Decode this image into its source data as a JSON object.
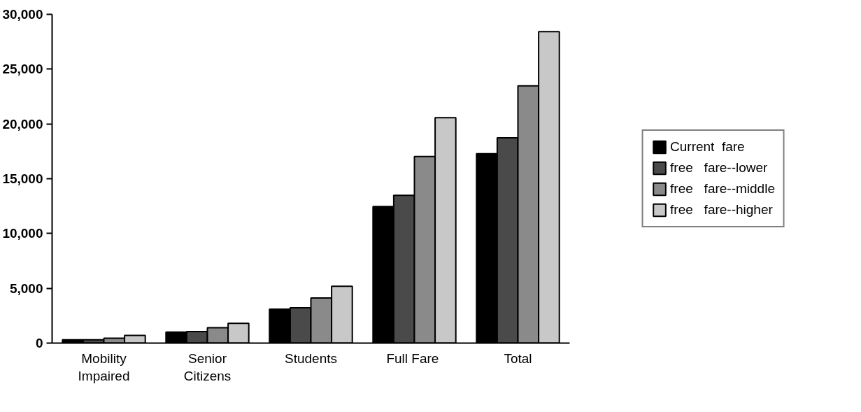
{
  "chart_data": {
    "type": "bar",
    "categories": [
      "Mobility\nImpaired",
      "Senior\nCitizens",
      "Students",
      "Full  Fare",
      "Total"
    ],
    "series": [
      {
        "name": "Current  fare",
        "color": "#000000",
        "values": [
          300,
          1000,
          3100,
          12470,
          17280
        ]
      },
      {
        "name": "free   fare--lower",
        "color": "#4a4a4a",
        "values": [
          300,
          1050,
          3230,
          13480,
          18730
        ]
      },
      {
        "name": "free   fare--middle",
        "color": "#8a8a8a",
        "values": [
          450,
          1400,
          4110,
          17030,
          23480
        ]
      },
      {
        "name": "free   fare--higher",
        "color": "#c8c8c8",
        "values": [
          700,
          1800,
          5190,
          20570,
          28420
        ]
      }
    ],
    "ylim": [
      0,
      30000
    ],
    "yticks": [
      0,
      {
        "value": 5000,
        "label": "5,000"
      },
      {
        "value": 10000,
        "label": "10,000"
      },
      {
        "value": 15000,
        "label": "15,000"
      },
      {
        "value": 20000,
        "label": "20,000"
      },
      {
        "value": 25000,
        "label": "25,000"
      },
      {
        "value": 30000,
        "label": "30,000"
      }
    ],
    "grid": false,
    "legend": "right"
  }
}
